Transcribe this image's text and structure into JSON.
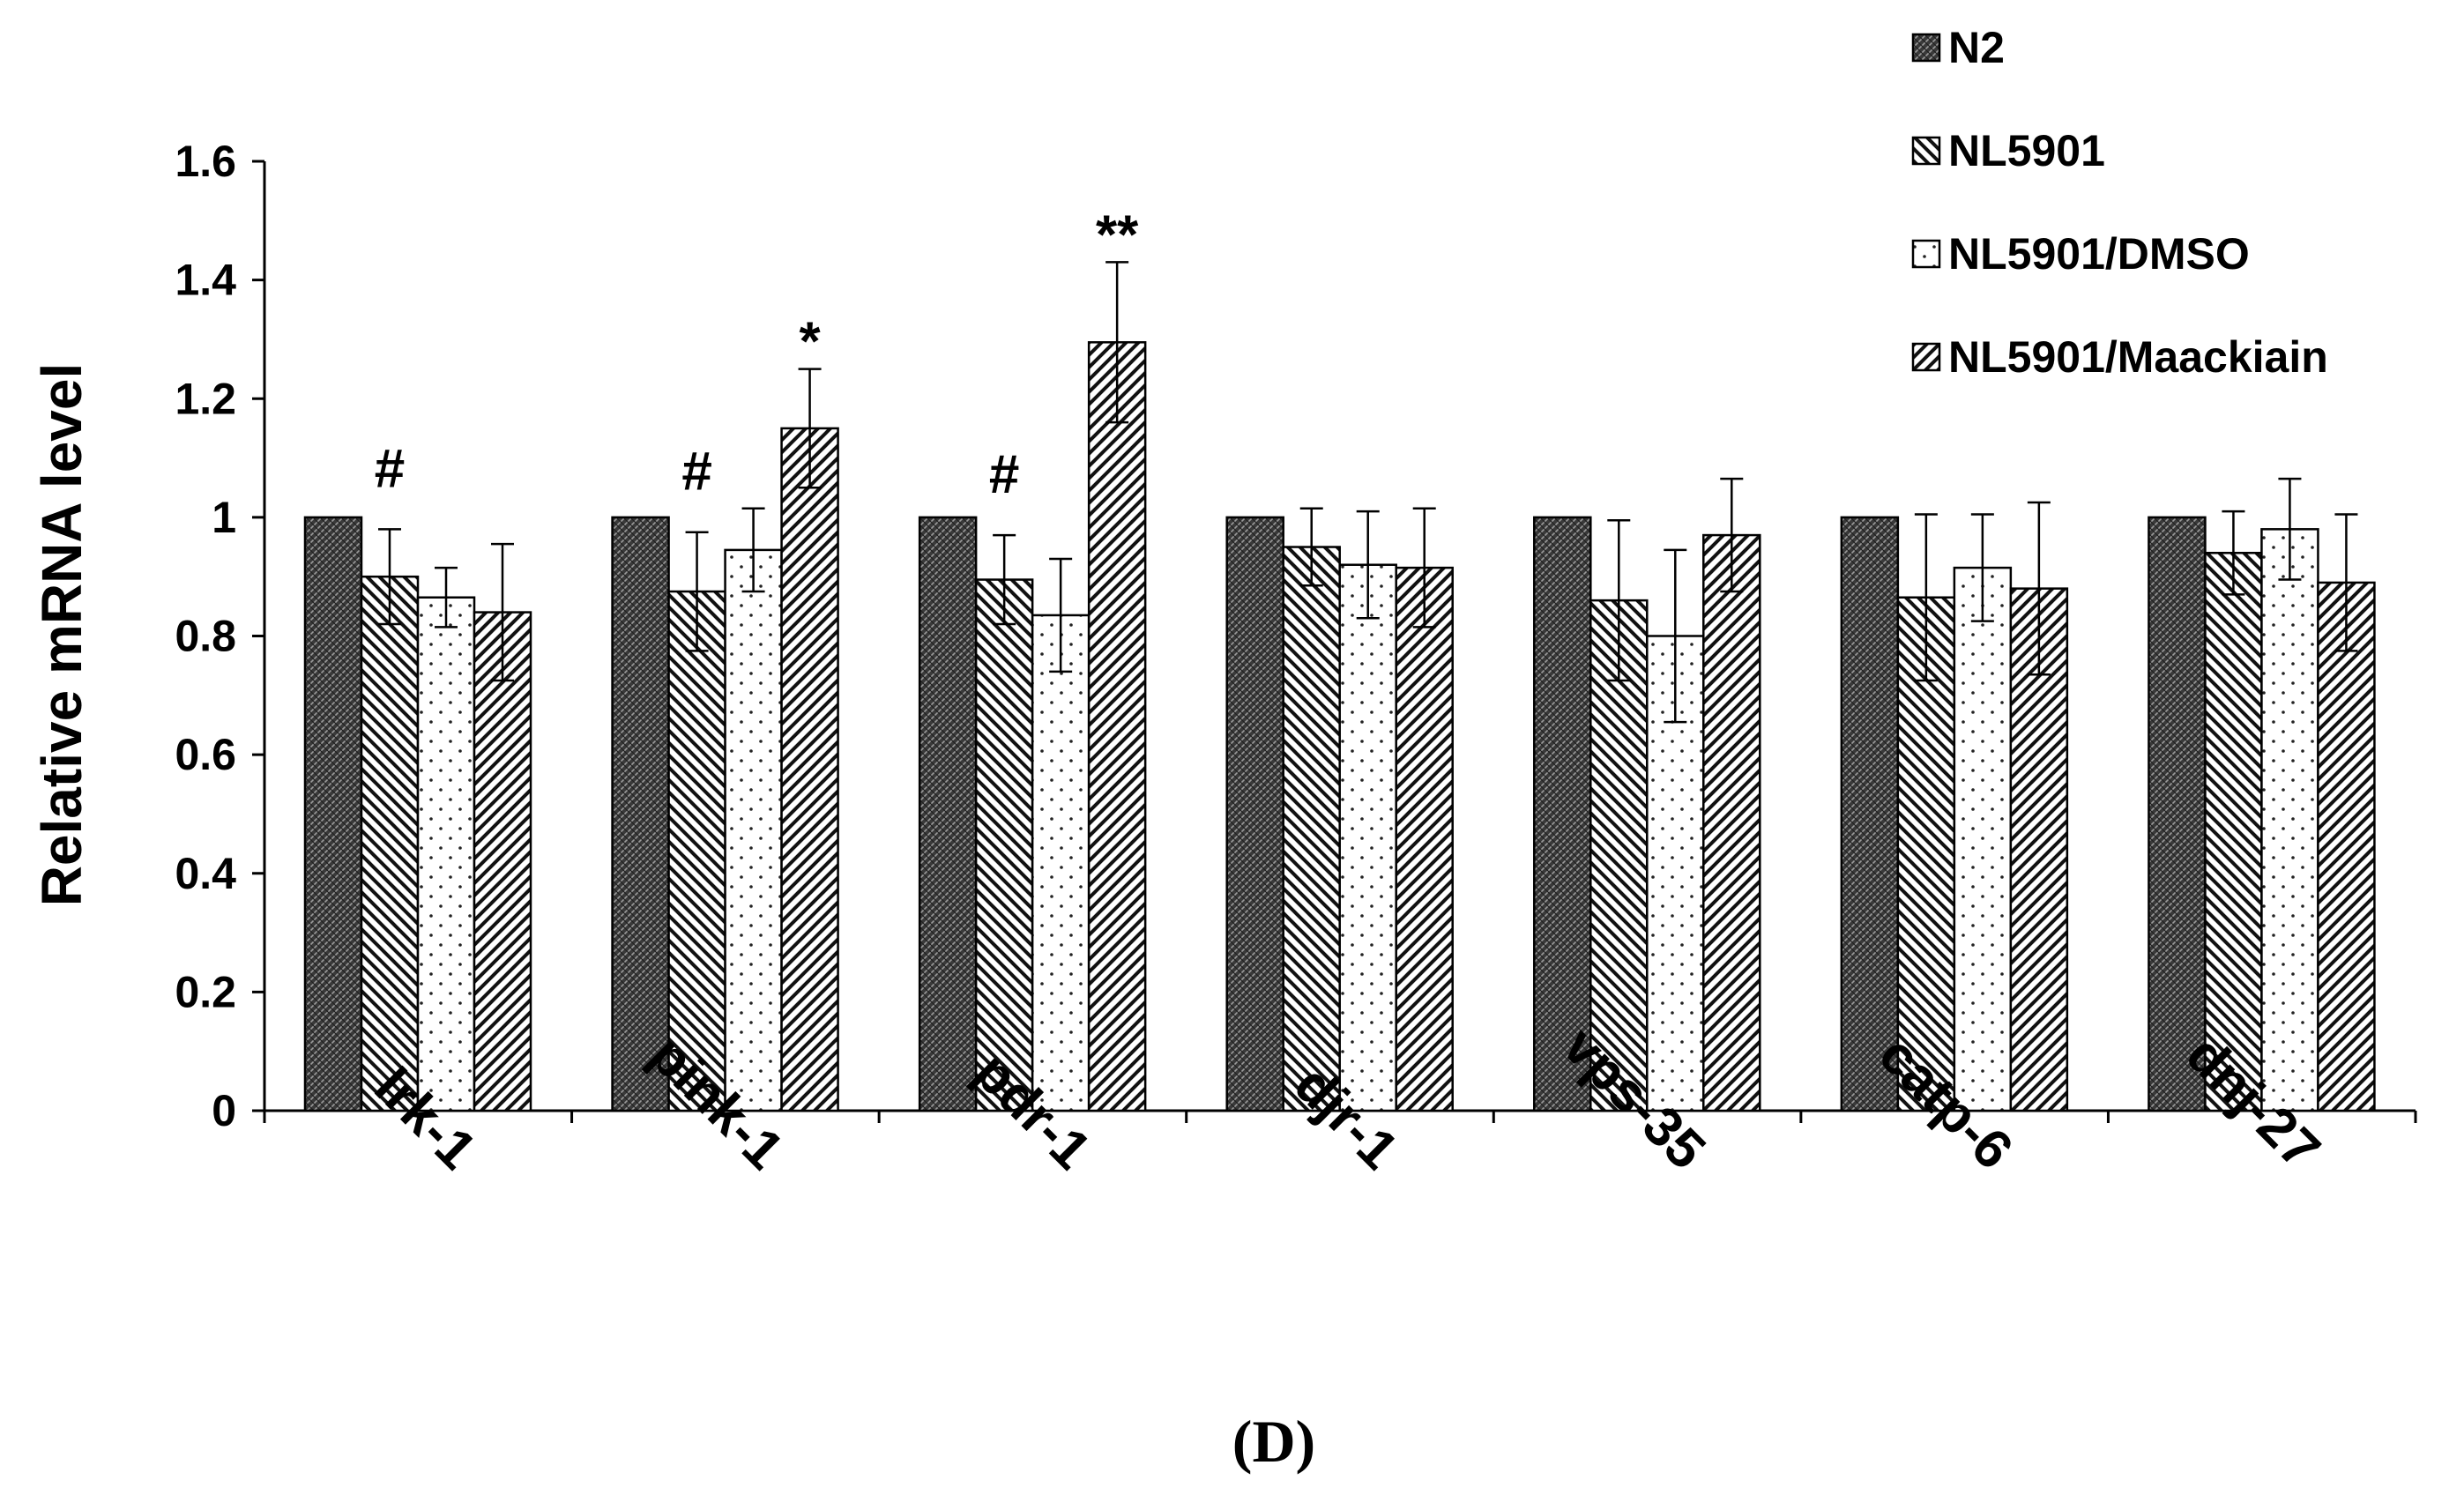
{
  "chart_data": {
    "type": "bar",
    "title": "",
    "xlabel": "",
    "ylabel": "Relative mRNA level",
    "ylim": [
      0,
      1.6
    ],
    "yticks": [
      "0",
      "0.2",
      "0.4",
      "0.6",
      "0.8",
      "1",
      "1.2",
      "1.4",
      "1.6"
    ],
    "categories": [
      "lrk-1",
      "pink-1",
      "pdr-1",
      "djr-1",
      "vps-35",
      "catp-6",
      "dnj-27"
    ],
    "series": [
      {
        "name": "N2",
        "pattern": "dense-crosshatch",
        "values": [
          1.0,
          1.0,
          1.0,
          1.0,
          1.0,
          1.0,
          1.0
        ],
        "errors": [
          0,
          0,
          0,
          0,
          0,
          0,
          0
        ]
      },
      {
        "name": "NL5901",
        "pattern": "back-diagonal",
        "values": [
          0.9,
          0.875,
          0.895,
          0.95,
          0.86,
          0.865,
          0.94
        ],
        "errors": [
          0.08,
          0.1,
          0.075,
          0.065,
          0.135,
          0.14,
          0.07
        ]
      },
      {
        "name": "NL5901/DMSO",
        "pattern": "dots",
        "values": [
          0.865,
          0.945,
          0.835,
          0.92,
          0.8,
          0.915,
          0.98
        ],
        "errors": [
          0.05,
          0.07,
          0.095,
          0.09,
          0.145,
          0.09,
          0.085
        ]
      },
      {
        "name": "NL5901/Maackiain",
        "pattern": "forward-diagonal",
        "values": [
          0.84,
          1.15,
          1.295,
          0.915,
          0.97,
          0.88,
          0.89
        ],
        "errors": [
          0.115,
          0.1,
          0.135,
          0.1,
          0.095,
          0.145,
          0.115
        ]
      }
    ],
    "annotations": [
      {
        "category": 0,
        "series": 1,
        "text": "#"
      },
      {
        "category": 1,
        "series": 1,
        "text": "#"
      },
      {
        "category": 1,
        "series": 3,
        "text": "*"
      },
      {
        "category": 2,
        "series": 1,
        "text": "#"
      },
      {
        "category": 2,
        "series": 3,
        "text": "**"
      }
    ],
    "legend_position": "top-right",
    "panel_label": "(D)"
  }
}
